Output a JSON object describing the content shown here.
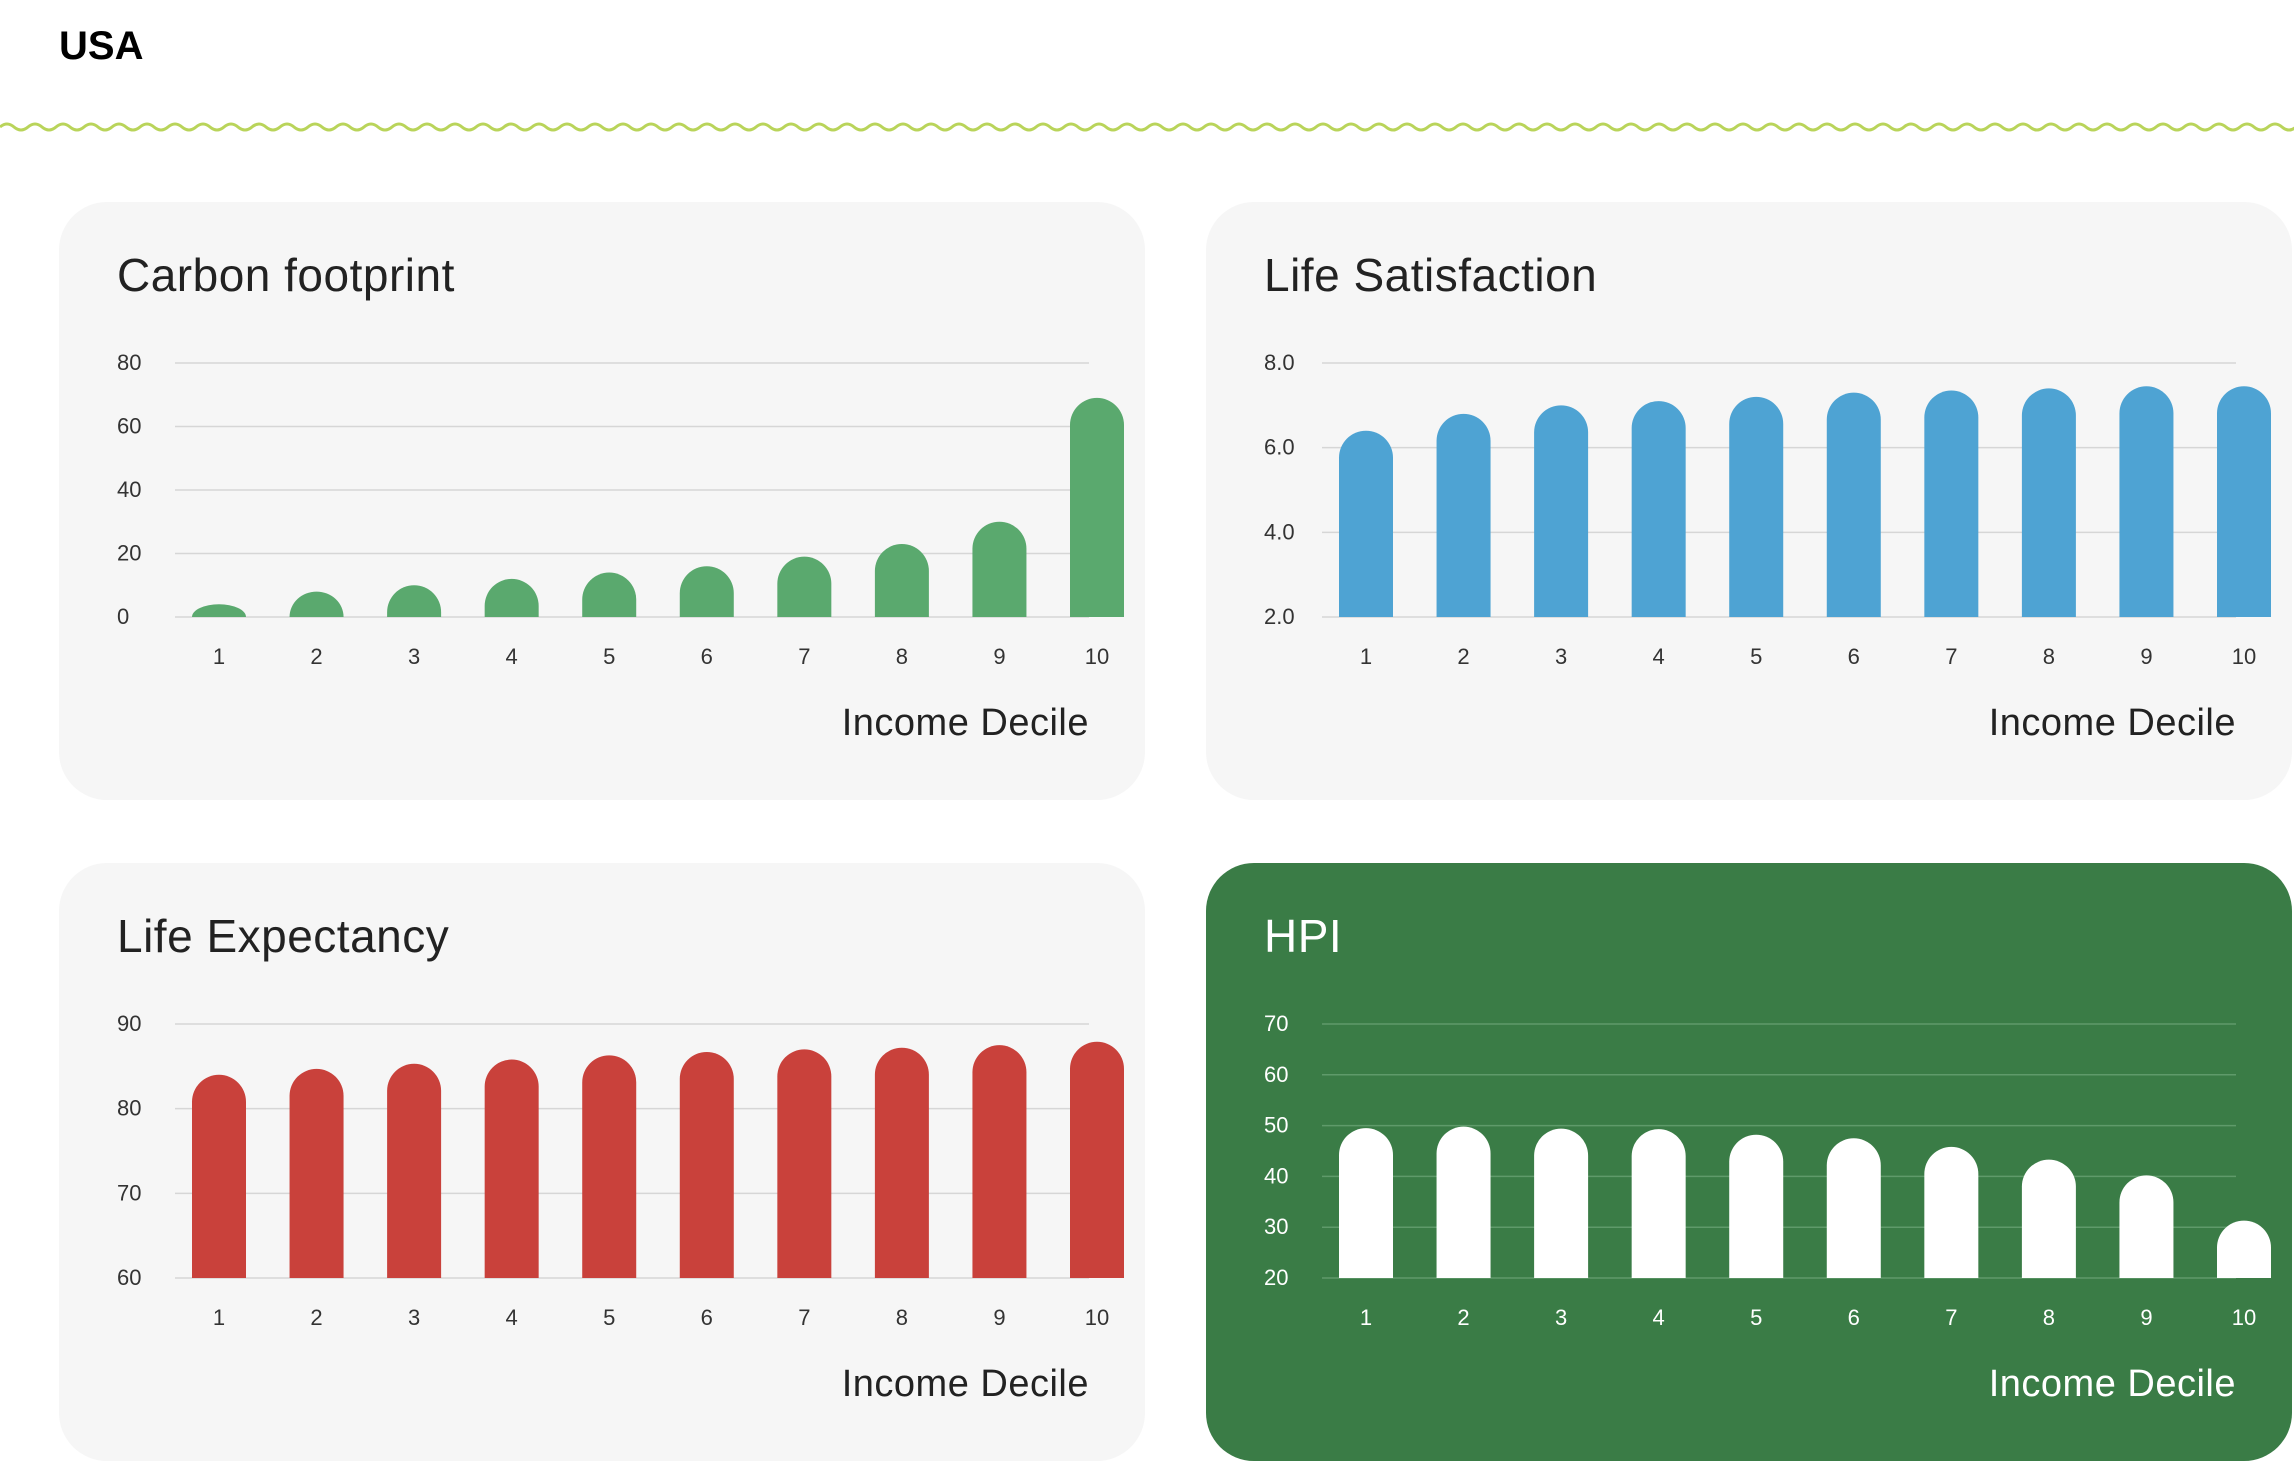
{
  "page": {
    "title": "USA"
  },
  "colors": {
    "divider": "#b9d45a",
    "card_bg": "#f6f6f6",
    "card_dark_bg": "#3a7c46",
    "grid_light": "#d6d6d6",
    "grid_dark": "#5f9a6a"
  },
  "chart_data": [
    {
      "type": "bar",
      "title": "Carbon footprint",
      "xlabel": "Income Decile",
      "ylabel": "",
      "categories": [
        "1",
        "2",
        "3",
        "4",
        "5",
        "6",
        "7",
        "8",
        "9",
        "10"
      ],
      "values": [
        4,
        8,
        10,
        12,
        14,
        16,
        19,
        23,
        30,
        69
      ],
      "ylim": [
        0,
        80
      ],
      "yticks": [
        "0",
        "20",
        "40",
        "60",
        "80"
      ],
      "color": "#5aa96e",
      "grid": true,
      "legend": "none"
    },
    {
      "type": "bar",
      "title": "Life Satisfaction",
      "xlabel": "Income Decile",
      "ylabel": "",
      "categories": [
        "1",
        "2",
        "3",
        "4",
        "5",
        "6",
        "7",
        "8",
        "9",
        "10"
      ],
      "values": [
        6.4,
        6.8,
        7.0,
        7.1,
        7.2,
        7.3,
        7.35,
        7.4,
        7.45,
        7.45
      ],
      "ylim": [
        2,
        8
      ],
      "yticks": [
        "2.0",
        "4.0",
        "6.0",
        "8.0"
      ],
      "color": "#4ea3d3",
      "grid": true,
      "legend": "none"
    },
    {
      "type": "bar",
      "title": "Life Expectancy",
      "xlabel": "Income Decile",
      "ylabel": "",
      "categories": [
        "1",
        "2",
        "3",
        "4",
        "5",
        "6",
        "7",
        "8",
        "9",
        "10"
      ],
      "values": [
        84,
        84.7,
        85.3,
        85.8,
        86.3,
        86.7,
        87,
        87.2,
        87.5,
        87.9
      ],
      "ylim": [
        60,
        90
      ],
      "yticks": [
        "60",
        "70",
        "80",
        "90"
      ],
      "color": "#c9413b",
      "grid": true,
      "legend": "none"
    },
    {
      "type": "bar",
      "title": "HPI",
      "xlabel": "Income Decile",
      "ylabel": "",
      "categories": [
        "1",
        "2",
        "3",
        "4",
        "5",
        "6",
        "7",
        "8",
        "9",
        "10"
      ],
      "values": [
        49.5,
        49.8,
        49.4,
        49.3,
        48.2,
        47.5,
        45.8,
        43.3,
        40.2,
        31.3
      ],
      "ylim": [
        20,
        70
      ],
      "yticks": [
        "20",
        "30",
        "40",
        "50",
        "60",
        "70"
      ],
      "color": "#ffffff",
      "grid": true,
      "legend": "none"
    }
  ]
}
